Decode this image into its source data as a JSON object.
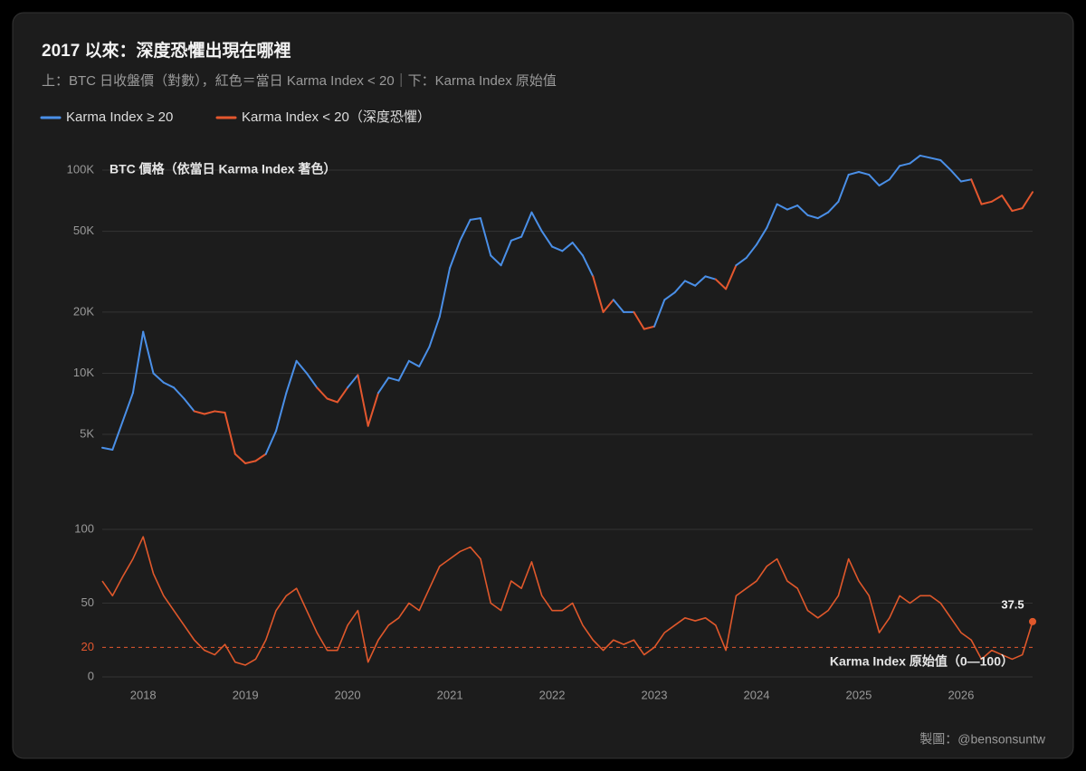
{
  "credit": "製圖：@bensonsuntw",
  "chart_data": [
    {
      "type": "line",
      "title": "2017 以來：深度恐懼出現在哪裡",
      "subtitle": "上：BTC 日收盤價（對數），紅色＝當日 Karma Index < 20｜下：Karma Index 原始值",
      "label": "BTC 價格（依當日 Karma Index 著色）",
      "log_scale": true,
      "grid": true,
      "xlim": [
        2017.6,
        2026.7
      ],
      "ylim": [
        3000,
        125000
      ],
      "yticks": [
        {
          "value": 5000,
          "label": "5K"
        },
        {
          "value": 10000,
          "label": "10K"
        },
        {
          "value": 20000,
          "label": "20K"
        },
        {
          "value": 50000,
          "label": "50K"
        },
        {
          "value": 100000,
          "label": "100K"
        }
      ],
      "x": [
        2017.6,
        2017.7,
        2017.8,
        2017.9,
        2018.0,
        2018.1,
        2018.2,
        2018.3,
        2018.4,
        2018.5,
        2018.6,
        2018.7,
        2018.8,
        2018.9,
        2019.0,
        2019.1,
        2019.2,
        2019.3,
        2019.4,
        2019.5,
        2019.6,
        2019.7,
        2019.8,
        2019.9,
        2020.0,
        2020.1,
        2020.2,
        2020.3,
        2020.4,
        2020.5,
        2020.6,
        2020.7,
        2020.8,
        2020.9,
        2021.0,
        2021.1,
        2021.2,
        2021.3,
        2021.4,
        2021.5,
        2021.6,
        2021.7,
        2021.8,
        2021.9,
        2022.0,
        2022.1,
        2022.2,
        2022.3,
        2022.4,
        2022.5,
        2022.6,
        2022.7,
        2022.8,
        2022.9,
        2023.0,
        2023.1,
        2023.2,
        2023.3,
        2023.4,
        2023.5,
        2023.6,
        2023.7,
        2023.8,
        2023.9,
        2024.0,
        2024.1,
        2024.2,
        2024.3,
        2024.4,
        2024.5,
        2024.6,
        2024.7,
        2024.8,
        2024.9,
        2025.0,
        2025.1,
        2025.2,
        2025.3,
        2025.4,
        2025.5,
        2025.6,
        2025.7,
        2025.8,
        2025.9,
        2026.0,
        2026.1,
        2026.2,
        2026.3,
        2026.4,
        2026.5,
        2026.6,
        2026.7
      ],
      "series": [
        {
          "name": "Karma Index ≥ 20",
          "color": "#4a8fe7",
          "values": [
            4300,
            4200,
            5800,
            8000,
            16000,
            10000,
            9000,
            8500,
            7500,
            6500,
            6300,
            6500,
            6400,
            4000,
            3600,
            3700,
            4000,
            5200,
            8000,
            11500,
            10000,
            8500,
            7500,
            7200,
            8500,
            9800,
            5500,
            8000,
            9500,
            9200,
            11500,
            10800,
            13500,
            19000,
            33000,
            45000,
            57000,
            58000,
            38000,
            34000,
            45000,
            47000,
            62000,
            50000,
            42000,
            40000,
            44000,
            38000,
            30000,
            20000,
            23000,
            20000,
            20000,
            16500,
            17000,
            23000,
            25000,
            28500,
            27000,
            30000,
            29000,
            26000,
            34000,
            37000,
            43000,
            52000,
            68000,
            64000,
            67000,
            60000,
            58000,
            62000,
            70000,
            95000,
            98000,
            95000,
            84000,
            90000,
            105000,
            108000,
            118000,
            115000,
            112000,
            100000,
            88000,
            90000,
            68000,
            70000,
            75000,
            63000,
            65000,
            78000
          ]
        }
      ],
      "highlight": {
        "name": "Karma Index < 20（深度恐懼）",
        "color": "#e4572e"
      }
    },
    {
      "type": "line",
      "label": "Karma Index 原始值（0—100）",
      "grid": true,
      "xlim": [
        2017.6,
        2026.7
      ],
      "xticks": [
        {
          "value": 2018,
          "label": "2018"
        },
        {
          "value": 2019,
          "label": "2019"
        },
        {
          "value": 2020,
          "label": "2020"
        },
        {
          "value": 2021,
          "label": "2021"
        },
        {
          "value": 2022,
          "label": "2022"
        },
        {
          "value": 2023,
          "label": "2023"
        },
        {
          "value": 2024,
          "label": "2024"
        },
        {
          "value": 2025,
          "label": "2025"
        },
        {
          "value": 2026,
          "label": "2026"
        }
      ],
      "ylim": [
        0,
        100
      ],
      "yticks": [
        0,
        20,
        50,
        100
      ],
      "threshold": 20,
      "threshold_color": "#e4572e",
      "annotate_last": true,
      "x": [
        2017.6,
        2017.7,
        2017.8,
        2017.9,
        2018.0,
        2018.1,
        2018.2,
        2018.3,
        2018.4,
        2018.5,
        2018.6,
        2018.7,
        2018.8,
        2018.9,
        2019.0,
        2019.1,
        2019.2,
        2019.3,
        2019.4,
        2019.5,
        2019.6,
        2019.7,
        2019.8,
        2019.9,
        2020.0,
        2020.1,
        2020.2,
        2020.3,
        2020.4,
        2020.5,
        2020.6,
        2020.7,
        2020.8,
        2020.9,
        2021.0,
        2021.1,
        2021.2,
        2021.3,
        2021.4,
        2021.5,
        2021.6,
        2021.7,
        2021.8,
        2021.9,
        2022.0,
        2022.1,
        2022.2,
        2022.3,
        2022.4,
        2022.5,
        2022.6,
        2022.7,
        2022.8,
        2022.9,
        2023.0,
        2023.1,
        2023.2,
        2023.3,
        2023.4,
        2023.5,
        2023.6,
        2023.7,
        2023.8,
        2023.9,
        2024.0,
        2024.1,
        2024.2,
        2024.3,
        2024.4,
        2024.5,
        2024.6,
        2024.7,
        2024.8,
        2024.9,
        2025.0,
        2025.1,
        2025.2,
        2025.3,
        2025.4,
        2025.5,
        2025.6,
        2025.7,
        2025.8,
        2025.9,
        2026.0,
        2026.1,
        2026.2,
        2026.3,
        2026.4,
        2026.5,
        2026.6,
        2026.7
      ],
      "series": [
        {
          "name": "Karma Index",
          "color": "#e0582b",
          "values": [
            65,
            55,
            68,
            80,
            95,
            70,
            55,
            45,
            35,
            25,
            18,
            15,
            22,
            10,
            8,
            12,
            25,
            45,
            55,
            60,
            45,
            30,
            18,
            18,
            35,
            45,
            10,
            25,
            35,
            40,
            50,
            45,
            60,
            75,
            80,
            85,
            88,
            80,
            50,
            45,
            65,
            60,
            78,
            55,
            45,
            45,
            50,
            35,
            25,
            18,
            25,
            22,
            25,
            15,
            20,
            30,
            35,
            40,
            38,
            40,
            35,
            18,
            55,
            60,
            65,
            75,
            80,
            65,
            60,
            45,
            40,
            45,
            55,
            80,
            65,
            55,
            30,
            40,
            55,
            50,
            55,
            55,
            50,
            40,
            30,
            25,
            12,
            18,
            15,
            12,
            15,
            37.5
          ]
        }
      ]
    }
  ]
}
